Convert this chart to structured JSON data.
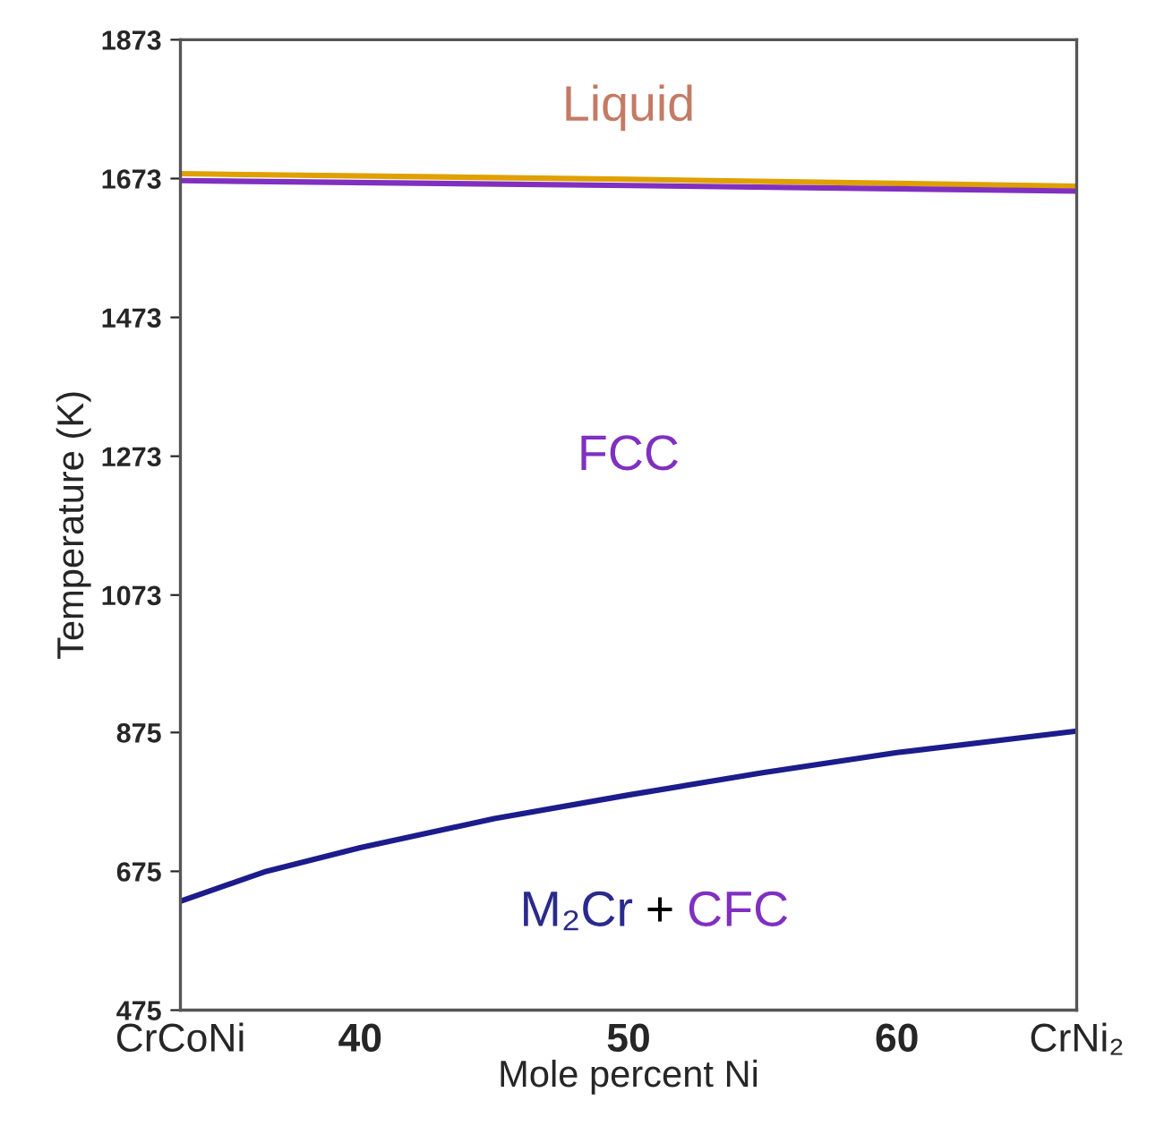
{
  "chart_data": {
    "type": "line",
    "xlabel": "Mole percent Ni",
    "ylabel": "Temperature (K)",
    "xlim": [
      33.3,
      66.7
    ],
    "ylim": [
      475,
      1873
    ],
    "xticks": [
      {
        "value": 33.3,
        "label": "CrCoNi"
      },
      40,
      50,
      60,
      {
        "value": 66.7,
        "label": "CrNi₂"
      }
    ],
    "yticks": [
      475,
      675,
      875,
      1073,
      1273,
      1473,
      1673,
      1873
    ],
    "series": [
      {
        "color": "#e0a000",
        "x": [
          33.3,
          50,
          66.7
        ],
        "values": [
          1680,
          1672,
          1662
        ]
      },
      {
        "color": "#8030c0",
        "x": [
          33.3,
          50,
          66.7
        ],
        "values": [
          1670,
          1663,
          1655
        ]
      },
      {
        "color": "#1c1c8c",
        "x": [
          33.3,
          36.5,
          40,
          45,
          50,
          55,
          60,
          66.7
        ],
        "values": [
          632,
          675,
          709,
          751,
          785,
          817,
          846,
          877
        ]
      }
    ],
    "annotations": [
      "Liquid",
      "FCC",
      "M₂Cr",
      "+",
      "CFC"
    ],
    "grid": false,
    "marker": "none",
    "line_style": "solid"
  }
}
